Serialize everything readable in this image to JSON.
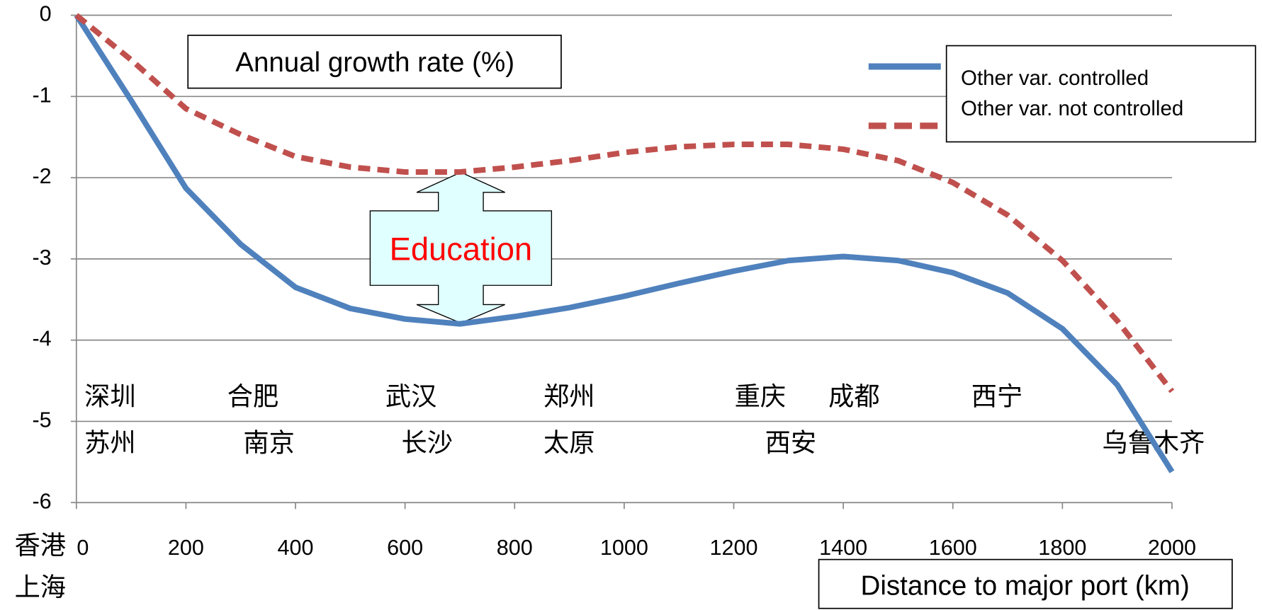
{
  "chart_data": {
    "type": "line",
    "x": [
      0,
      100,
      200,
      300,
      400,
      500,
      600,
      700,
      800,
      900,
      1000,
      1100,
      1200,
      1300,
      1400,
      1500,
      1600,
      1700,
      1800,
      1900,
      2000
    ],
    "series": [
      {
        "name": "Other var. controlled",
        "color": "#4f81bd",
        "style": "solid",
        "values": [
          0,
          -1.05,
          -2.13,
          -2.82,
          -3.35,
          -3.61,
          -3.74,
          -3.8,
          -3.71,
          -3.6,
          -3.46,
          -3.3,
          -3.15,
          -3.02,
          -2.97,
          -3.02,
          -3.17,
          -3.42,
          -3.86,
          -4.55,
          -5.62
        ]
      },
      {
        "name": "Other var. not controlled",
        "color": "#c0504d",
        "style": "dashed",
        "values": [
          0,
          -0.55,
          -1.15,
          -1.47,
          -1.74,
          -1.87,
          -1.93,
          -1.93,
          -1.87,
          -1.79,
          -1.69,
          -1.62,
          -1.59,
          -1.59,
          -1.65,
          -1.79,
          -2.06,
          -2.46,
          -3.02,
          -3.76,
          -4.63
        ]
      }
    ],
    "xlim": [
      0,
      2000
    ],
    "ylim": [
      -6,
      0
    ],
    "xticks": [
      0,
      200,
      400,
      600,
      800,
      1000,
      1200,
      1400,
      1600,
      1800,
      2000
    ],
    "yticks": [
      0,
      -1,
      -2,
      -3,
      -4,
      -5,
      -6
    ],
    "grid": true,
    "legend": "upper right",
    "y_label": "Annual growth rate (%)",
    "x_label": "Distance to major port (km)",
    "annotation": "Education",
    "cities": [
      "深圳",
      "合肥",
      "武汉",
      "郑州",
      "重庆",
      "成都",
      "西宁",
      "苏州",
      "南京",
      "长沙",
      "太原",
      "西安",
      "乌鲁木齐",
      "香港",
      "上海"
    ]
  }
}
